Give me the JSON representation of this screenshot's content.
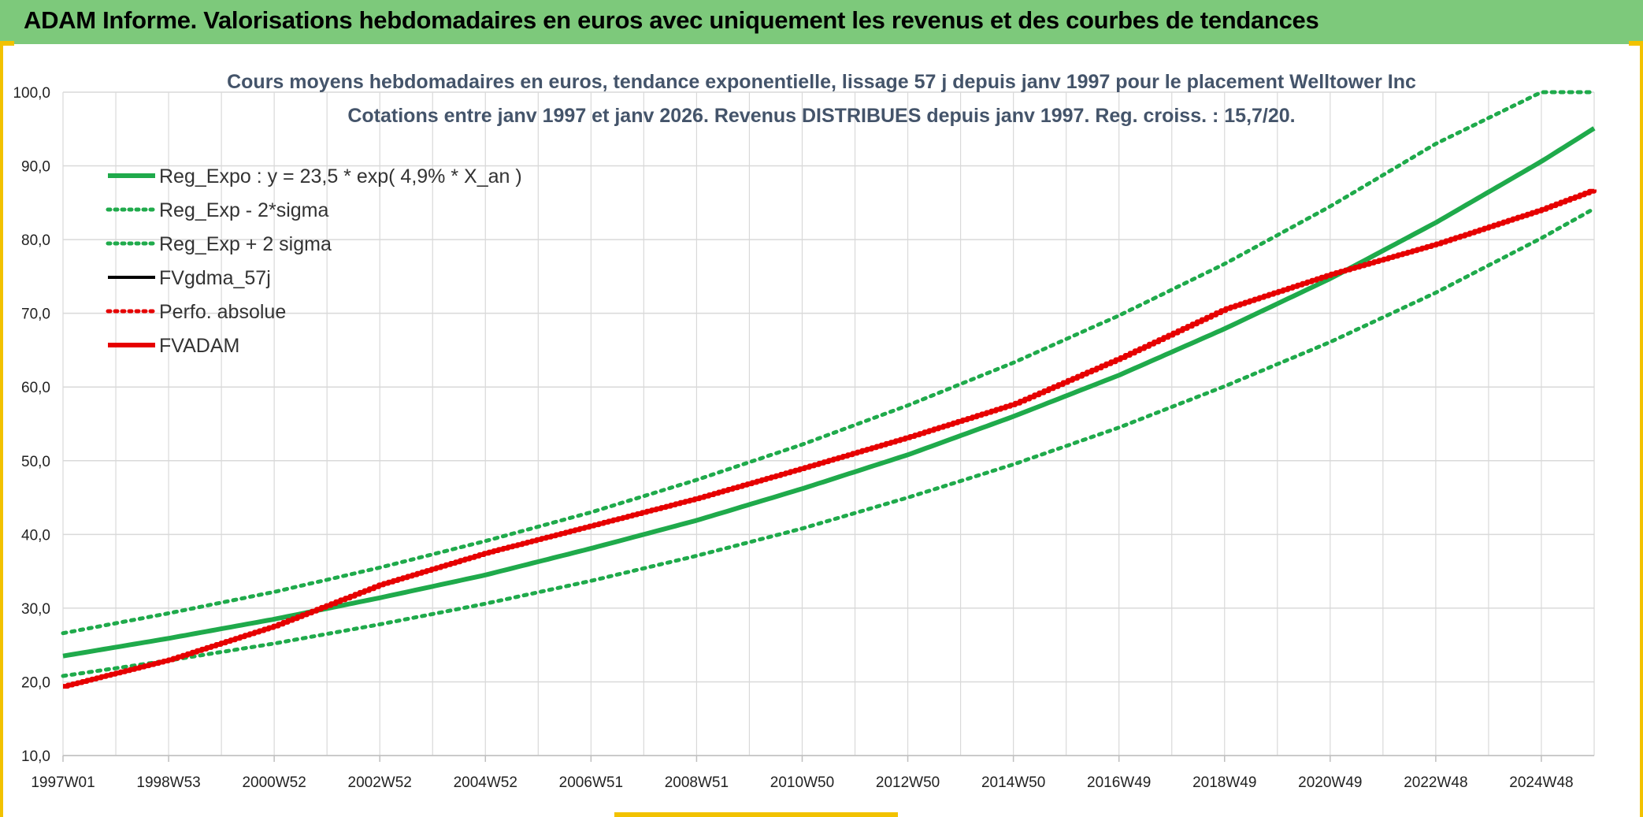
{
  "banner": {
    "title": "ADAM Informe. Valorisations hebdomadaires en euros avec uniquement les revenus et des courbes de tendances"
  },
  "colors": {
    "banner": "#7dc97b",
    "frame": "#f2c200",
    "reg_green": "#1faa4b",
    "fvadam_red": "#e60000",
    "grid": "#d9d9d9",
    "title": "#44546a"
  },
  "chart_data": {
    "type": "line",
    "title": "Cours moyens hebdomadaires en euros, tendance exponentielle, lissage 57 j depuis janv 1997 pour le placement Welltower Inc",
    "subtitle": "Cotations entre janv 1997 et janv 2026. Revenus DISTRIBUES depuis janv 1997. Reg. croiss. : 15,7/20.",
    "xlabel": "",
    "ylabel": "",
    "x_range": [
      1997.0,
      2026.0
    ],
    "ylim": [
      10,
      100
    ],
    "y_ticks": [
      "10,0",
      "20,0",
      "30,0",
      "40,0",
      "50,0",
      "60,0",
      "70,0",
      "80,0",
      "90,0",
      "100,0"
    ],
    "x_tick_labels": [
      {
        "label": "1997W01",
        "x": 1997.0
      },
      {
        "label": "1998W53",
        "x": 1999.0
      },
      {
        "label": "2000W52",
        "x": 2001.0
      },
      {
        "label": "2002W52",
        "x": 2003.0
      },
      {
        "label": "2004W52",
        "x": 2005.0
      },
      {
        "label": "2006W51",
        "x": 2007.0
      },
      {
        "label": "2008W51",
        "x": 2009.0
      },
      {
        "label": "2010W50",
        "x": 2011.0
      },
      {
        "label": "2012W50",
        "x": 2013.0
      },
      {
        "label": "2014W50",
        "x": 2015.0
      },
      {
        "label": "2016W49",
        "x": 2017.0
      },
      {
        "label": "2018W49",
        "x": 2019.0
      },
      {
        "label": "2020W49",
        "x": 2021.0
      },
      {
        "label": "2022W48",
        "x": 2023.0
      },
      {
        "label": "2024W48",
        "x": 2025.0
      }
    ],
    "grid": true,
    "legend_placement": "top-left",
    "series": [
      {
        "name": "Reg_Expo : y = 23,5 * exp( 4,9% *  X_an )",
        "style": "solid",
        "color": "#1faa4b",
        "x": [
          1997,
          1999,
          2001,
          2003,
          2005,
          2007,
          2009,
          2011,
          2013,
          2015,
          2017,
          2019,
          2021,
          2023,
          2025,
          2026
        ],
        "y": [
          23.5,
          25.9,
          28.5,
          31.4,
          34.5,
          38.1,
          41.9,
          46.2,
          50.8,
          56.0,
          61.6,
          67.9,
          74.7,
          82.3,
          90.6,
          95.1
        ]
      },
      {
        "name": "Reg_Exp - 2*sigma",
        "style": "dotted",
        "color": "#1faa4b",
        "x": [
          1997,
          1999,
          2001,
          2003,
          2005,
          2007,
          2009,
          2011,
          2013,
          2015,
          2017,
          2019,
          2021,
          2023,
          2025,
          2026
        ],
        "y": [
          20.8,
          22.9,
          25.2,
          27.8,
          30.6,
          33.7,
          37.1,
          40.8,
          45.0,
          49.5,
          54.5,
          60.1,
          66.1,
          72.8,
          80.2,
          84.2
        ]
      },
      {
        "name": "Reg_Exp + 2 sigma",
        "style": "dotted",
        "color": "#1faa4b",
        "x": [
          1997,
          1999,
          2001,
          2003,
          2005,
          2007,
          2009,
          2011,
          2013,
          2015,
          2017,
          2019,
          2021,
          2023,
          2025,
          2026
        ],
        "y": [
          26.6,
          29.3,
          32.2,
          35.5,
          39.1,
          43.0,
          47.4,
          52.2,
          57.5,
          63.3,
          69.7,
          76.7,
          84.5,
          93.0,
          100.0,
          100.0
        ]
      },
      {
        "name": "FVgdma_57j",
        "style": "solid",
        "color": "#000000",
        "x": [],
        "y": []
      },
      {
        "name": "Perfo. absolue",
        "style": "dotted",
        "color": "#e60000",
        "x": [],
        "y": []
      },
      {
        "name": "FVADAM",
        "style": "solid",
        "color": "#e60000",
        "x": [
          1997,
          1999,
          2001,
          2003,
          2005,
          2007,
          2009,
          2011,
          2013,
          2015,
          2017,
          2019,
          2021,
          2023,
          2025,
          2026
        ],
        "y": [
          19.4,
          23.0,
          27.6,
          33.2,
          37.5,
          41.2,
          44.9,
          49.0,
          53.2,
          57.7,
          63.9,
          70.6,
          75.3,
          79.4,
          84.1,
          86.8
        ]
      }
    ]
  }
}
